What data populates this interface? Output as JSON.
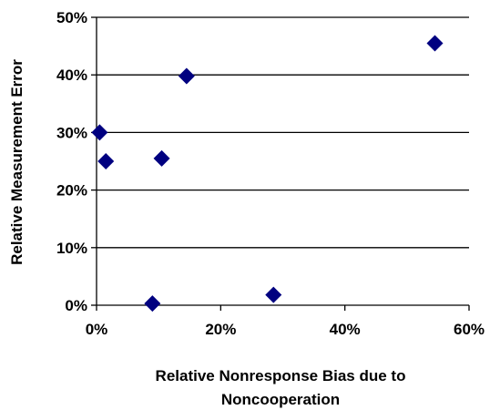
{
  "chart_data": {
    "type": "scatter",
    "title": "",
    "xlabel": [
      "Relative Nonresponse Bias due to",
      "Noncooperation"
    ],
    "ylabel": "Relative Measurement Error",
    "xlim": [
      0,
      60
    ],
    "ylim": [
      0,
      50
    ],
    "x_ticks": [
      "0%",
      "20%",
      "40%",
      "60%"
    ],
    "y_ticks": [
      "0%",
      "10%",
      "20%",
      "30%",
      "40%",
      "50%"
    ],
    "grid": "horizontal",
    "legend": "none",
    "marker": "diamond",
    "marker_color": "#000080",
    "points": [
      {
        "x": 0.5,
        "y": 30
      },
      {
        "x": 1.5,
        "y": 25
      },
      {
        "x": 9,
        "y": 0.3
      },
      {
        "x": 10.5,
        "y": 25.5
      },
      {
        "x": 14.5,
        "y": 39.8
      },
      {
        "x": 28.5,
        "y": 1.8
      },
      {
        "x": 54.5,
        "y": 45.5
      }
    ]
  }
}
